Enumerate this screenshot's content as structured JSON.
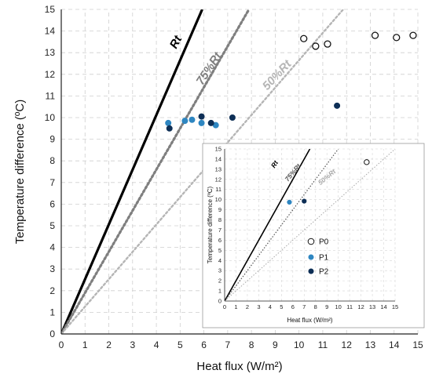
{
  "chart_data": [
    {
      "type": "scatter",
      "xlabel": "Heat flux (W/m²)",
      "ylabel": "Temperature difference (ºC)",
      "xlim": [
        0,
        15
      ],
      "ylim": [
        0,
        15
      ],
      "x_ticks": [
        "0",
        "1",
        "2",
        "3",
        "4",
        "5",
        "6",
        "7",
        "8",
        "9",
        "10",
        "11",
        "12",
        "13",
        "14",
        "15"
      ],
      "y_ticks": [
        "0",
        "1",
        "2",
        "3",
        "4",
        "5",
        "6",
        "7",
        "8",
        "9",
        "10",
        "11",
        "12",
        "13",
        "14",
        "15"
      ],
      "grid": true,
      "colors": {
        "P0": "#ffffff",
        "P1": "#2e86c1",
        "P2": "#0e2f56"
      },
      "lines": [
        {
          "label": "Rt",
          "slope": 2.53,
          "style": "solid",
          "color": "#000000"
        },
        {
          "label": "75%Rt",
          "slope": 1.9,
          "style": "dotted",
          "color": "#7f7f7f"
        },
        {
          "label": "50%Rt",
          "slope": 1.265,
          "style": "dotted",
          "color": "#b5b5b5"
        }
      ],
      "series": [
        {
          "name": "P0",
          "points": [
            [
              10.2,
              13.65
            ],
            [
              10.7,
              13.3
            ],
            [
              11.2,
              13.4
            ],
            [
              13.2,
              13.8
            ],
            [
              14.1,
              13.7
            ],
            [
              14.8,
              13.8
            ]
          ]
        },
        {
          "name": "P1",
          "points": [
            [
              4.5,
              9.75
            ],
            [
              5.2,
              9.85
            ],
            [
              5.5,
              9.9
            ],
            [
              5.9,
              9.75
            ],
            [
              6.5,
              9.65
            ]
          ]
        },
        {
          "name": "P2",
          "points": [
            [
              4.55,
              9.5
            ],
            [
              5.9,
              10.05
            ],
            [
              6.3,
              9.75
            ],
            [
              7.2,
              10.0
            ],
            [
              11.6,
              10.55
            ]
          ]
        }
      ]
    },
    {
      "type": "scatter",
      "xlabel": "Heat flux (W/m²)",
      "ylabel": "Temperature difference (ºC)",
      "xlim": [
        0,
        15
      ],
      "ylim": [
        0,
        15
      ],
      "x_ticks": [
        "0",
        "1",
        "2",
        "3",
        "4",
        "5",
        "6",
        "7",
        "8",
        "9",
        "10",
        "11",
        "12",
        "13",
        "14",
        "15"
      ],
      "y_ticks": [
        "0",
        "1",
        "2",
        "3",
        "4",
        "5",
        "6",
        "7",
        "8",
        "9",
        "10",
        "11",
        "12",
        "13",
        "14",
        "15"
      ],
      "grid": true,
      "legend": {
        "position": "right",
        "entries": [
          "P0",
          "P1",
          "P2"
        ]
      },
      "lines": [
        {
          "label": "Rt",
          "slope": 2.0
        },
        {
          "label": "75%Rt",
          "slope": 1.5
        },
        {
          "label": "50%Rt",
          "slope": 1.0
        }
      ],
      "series": [
        {
          "name": "P0",
          "points": [
            [
              12.5,
              13.7
            ]
          ]
        },
        {
          "name": "P1",
          "points": [
            [
              5.7,
              9.75
            ]
          ]
        },
        {
          "name": "P2",
          "points": [
            [
              7.0,
              9.85
            ]
          ]
        }
      ]
    }
  ]
}
